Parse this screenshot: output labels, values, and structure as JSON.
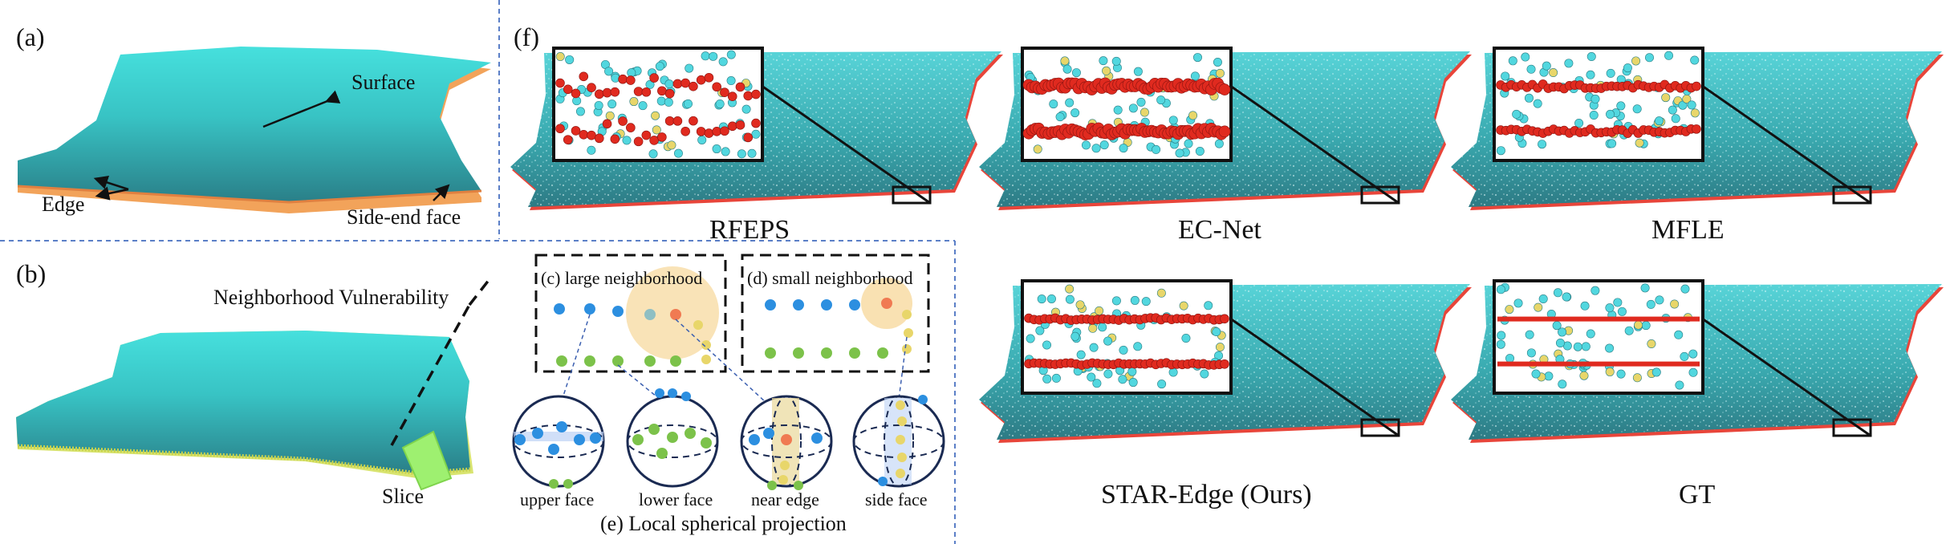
{
  "panel_labels": {
    "a": "(a)",
    "b": "(b)",
    "f": "(f)"
  },
  "panel_a": {
    "surface": "Surface",
    "edge": "Edge",
    "side_end_face": "Side-end face"
  },
  "panel_b": {
    "vulnerability": "Neighborhood Vulnerability",
    "slice": "Slice"
  },
  "panel_c": {
    "title": "(c) large neighborhood"
  },
  "panel_d": {
    "title": "(d) small neighborhood"
  },
  "panel_e": {
    "title": "(e) Local spherical projection",
    "faces": [
      "upper face",
      "lower face",
      "near edge",
      "side face"
    ]
  },
  "methods": [
    "RFEPS",
    "EC-Net",
    "MFLE",
    "STAR-Edge (Ours)",
    "GT"
  ],
  "colors": {
    "surface_cyan": "#3fd0d0",
    "surface_dark": "#2a7f86",
    "edge_red": "#e02a1f",
    "point_cyan": "#52d7df",
    "point_yellow": "#e8d66a",
    "point_blue": "#2c8fe0",
    "point_green": "#7cc24a",
    "point_orange": "#f07a52",
    "highlight": "#f8deaa",
    "divider_blue": "#5b7fc7"
  }
}
